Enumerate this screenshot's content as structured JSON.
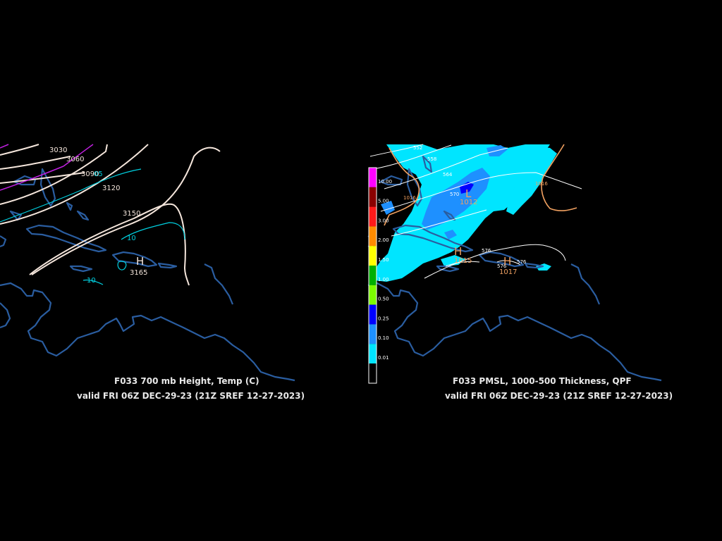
{
  "left_panel": {
    "caption_line1": "F033 700 mb Height, Temp (C)",
    "caption_line2": "valid FRI 06Z DEC-29-23 (21Z SREF 12-27-2023)",
    "height_labels": [
      "3030",
      "3060",
      "3090",
      "3120",
      "3150",
      "3165"
    ],
    "temp_labels": [
      "05",
      "10",
      "10"
    ],
    "high_symbol": "H"
  },
  "right_panel": {
    "caption_line1": "F033 PMSL, 1000-500 Thickness, QPF",
    "caption_line2": "valid FRI 06Z DEC-29-23 (21Z SREF 12-27-2023)",
    "thickness_labels": [
      "552",
      "558",
      "564",
      "570",
      "576",
      "576",
      "576"
    ],
    "pressure_labels": [
      "1012",
      "1015",
      "1016",
      "1017",
      "1016"
    ],
    "low_symbol": "L",
    "high_symbols": [
      "H",
      "H"
    ],
    "legend": {
      "levels": [
        "10.00",
        "5.00",
        "3.00",
        "2.00",
        "1.50",
        "1.00",
        "0.50",
        "0.25",
        "0.10",
        "0.01"
      ],
      "colors": [
        "#ff00ff",
        "#8b0000",
        "#ff1a1a",
        "#ff8c00",
        "#ffff00",
        "#00b000",
        "#7cfc00",
        "#0000ff",
        "#1e90ff",
        "#00e5ff"
      ]
    }
  },
  "colors": {
    "background": "#000000",
    "coastline": "#2a5da0",
    "height_contour": "#f5e6dc",
    "temp_contour": "#00d0e0",
    "isobar": "#f0a060",
    "qpf_light": "#00e5ff",
    "qpf_moderate": "#1e90ff"
  }
}
